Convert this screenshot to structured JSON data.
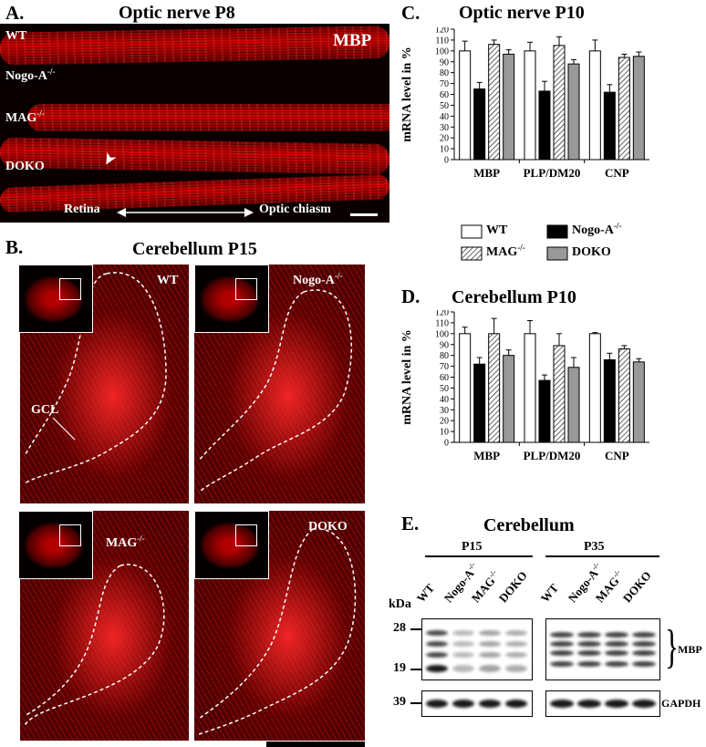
{
  "panelA": {
    "letter": "A.",
    "title": "Optic nerve P8",
    "labels": {
      "wt": "WT",
      "nogo_base": "Nogo-A",
      "mag_base": "MAG",
      "doko": "DOKO",
      "ko_sup": "-/-"
    },
    "stain": "MBP",
    "arrow_left": "Retina",
    "arrow_right": "Optic chiasm",
    "arrowhead_glyph": "➤"
  },
  "panelB": {
    "letter": "B.",
    "title": "Cerebellum P15",
    "labels": {
      "wt": "WT",
      "nogo_base": "Nogo-A",
      "mag_base": "MAG",
      "doko": "DOKO",
      "ko_sup": "-/-"
    },
    "gcl": "GCL"
  },
  "legend": {
    "wt": "WT",
    "nogo_base": "Nogo-A",
    "mag_base": "MAG",
    "doko": "DOKO",
    "ko_sup": "-/-"
  },
  "chart_data": [
    {
      "type": "bar",
      "panel": "C.",
      "title": "Optic nerve P10",
      "ylabel": "mRNA level in %",
      "ylim": [
        0,
        120
      ],
      "yticks": [
        0,
        10,
        20,
        30,
        40,
        50,
        60,
        70,
        80,
        90,
        100,
        110,
        120
      ],
      "categories": [
        "MBP",
        "PLP/DM20",
        "CNP"
      ],
      "series": [
        {
          "name": "WT",
          "values": [
            100,
            100,
            100
          ],
          "errors": [
            9,
            8,
            10
          ],
          "color": "#ffffff"
        },
        {
          "name": "Nogo-A-/-",
          "values": [
            65,
            63,
            62
          ],
          "errors": [
            6,
            9,
            7
          ],
          "color": "#000000"
        },
        {
          "name": "MAG-/-",
          "values": [
            106,
            105,
            94
          ],
          "errors": [
            4,
            8,
            3
          ],
          "color": "hatch"
        },
        {
          "name": "DOKO",
          "values": [
            97,
            88,
            95
          ],
          "errors": [
            4,
            4,
            4
          ],
          "color": "#999999"
        }
      ]
    },
    {
      "type": "bar",
      "panel": "D.",
      "title": "Cerebellum P10",
      "ylabel": "mRNA level in %",
      "ylim": [
        0,
        120
      ],
      "yticks": [
        0,
        10,
        20,
        30,
        40,
        50,
        60,
        70,
        80,
        90,
        100,
        110,
        120
      ],
      "categories": [
        "MBP",
        "PLP/DM20",
        "CNP"
      ],
      "series": [
        {
          "name": "WT",
          "values": [
            100,
            100,
            100
          ],
          "errors": [
            6,
            12,
            1
          ],
          "color": "#ffffff"
        },
        {
          "name": "Nogo-A-/-",
          "values": [
            72,
            57,
            76
          ],
          "errors": [
            6,
            5,
            6
          ],
          "color": "#000000"
        },
        {
          "name": "MAG-/-",
          "values": [
            100,
            89,
            86
          ],
          "errors": [
            14,
            11,
            3
          ],
          "color": "hatch"
        },
        {
          "name": "DOKO",
          "values": [
            80,
            69,
            74
          ],
          "errors": [
            5,
            9,
            3
          ],
          "color": "#999999"
        }
      ]
    }
  ],
  "panelE": {
    "letter": "E.",
    "title": "Cerebellum",
    "groups": [
      "P15",
      "P35"
    ],
    "lanes": [
      "WT",
      "Nogo-A",
      "MAG",
      "DOKO"
    ],
    "lane_sup": [
      "",
      "-/-",
      "-/-",
      ""
    ],
    "kda_label": "kDa",
    "markers": [
      "28",
      "19",
      "39"
    ],
    "proteins": [
      "MBP",
      "GAPDH"
    ],
    "brace": "}"
  }
}
